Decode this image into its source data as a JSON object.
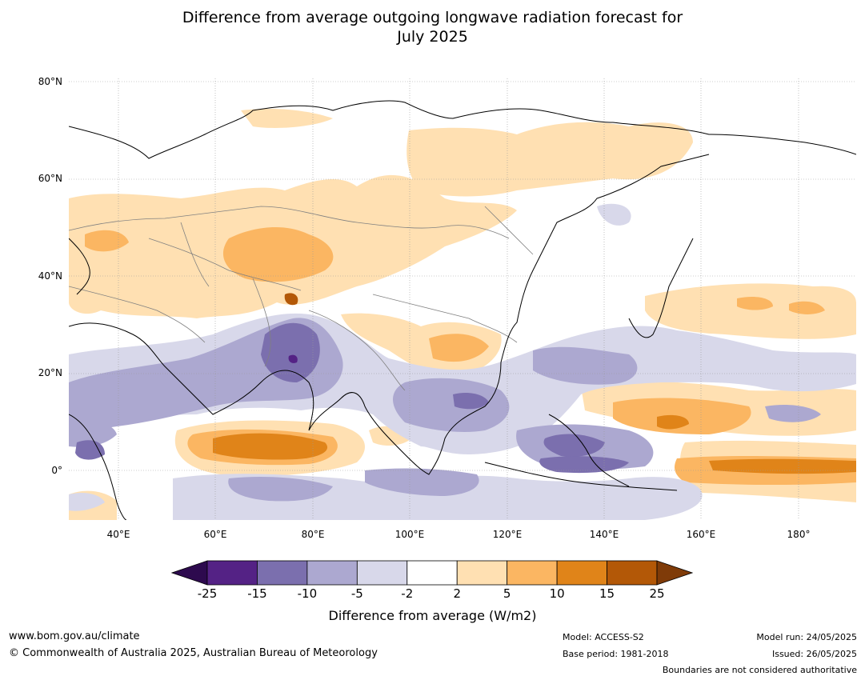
{
  "title_line1": "Difference from average outgoing longwave radiation forecast for",
  "title_line2": "July 2025",
  "latitude_labels": [
    "80°N",
    "60°N",
    "40°N",
    "20°N",
    "0°"
  ],
  "longitude_labels": [
    "40°E",
    "60°E",
    "80°E",
    "100°E",
    "120°E",
    "140°E",
    "160°E",
    "180°"
  ],
  "colorbar": {
    "ticks": [
      "-25",
      "-15",
      "-10",
      "-5",
      "-2",
      "2",
      "5",
      "10",
      "15",
      "25"
    ],
    "colors": [
      "#2d0a4e",
      "#542285",
      "#7b6fae",
      "#aca8d0",
      "#d8d8ea",
      "#ffffff",
      "#ffe0b2",
      "#fbb662",
      "#e08419",
      "#b35807",
      "#7f3b08"
    ],
    "label": "Difference from average (W/m2)"
  },
  "footer": {
    "website": "www.bom.gov.au/climate",
    "copyright": "© Commonwealth of Australia 2025, Australian Bureau of Meteorology",
    "model": "Model: ACCESS-S2",
    "base_period": "Base period: 1981-2018",
    "model_run": "Model run: 24/05/2025",
    "issued": "Issued: 26/05/2025",
    "disclaimer": "Boundaries are not considered authoritative"
  },
  "map_colors": {
    "light_orange": "#ffe0b2",
    "mid_orange": "#fbb662",
    "dark_orange": "#e08419",
    "brown": "#b35807",
    "pale_purple": "#d8d8ea",
    "light_purple": "#aca8d0",
    "mid_purple": "#7b6fae",
    "dark_purple": "#542285",
    "coastline": "#000000",
    "border": "#808080",
    "grid": "#999999"
  }
}
